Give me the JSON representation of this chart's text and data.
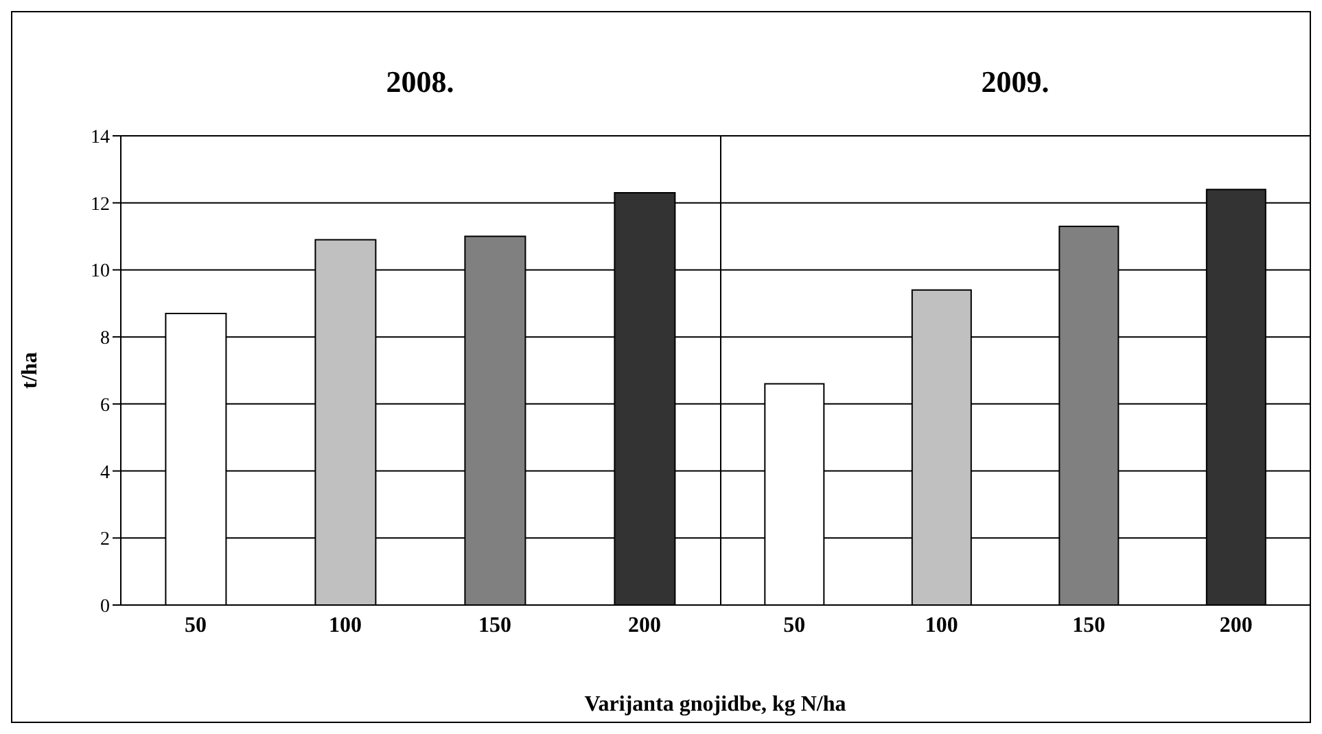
{
  "chart_data": [
    {
      "type": "bar",
      "title": "2008.",
      "ylabel": "t/ha",
      "xlabel": "Varijanta gnojidbe, kg N/ha",
      "categories": [
        "50",
        "100",
        "150",
        "200"
      ],
      "values": [
        8.7,
        10.9,
        11.0,
        12.3
      ],
      "colors": [
        "#ffffff",
        "#c0c0c0",
        "#808080",
        "#333333"
      ],
      "ylim": [
        0,
        14
      ],
      "yticks": [
        0,
        2,
        4,
        6,
        8,
        10,
        12,
        14
      ],
      "grid": "y"
    },
    {
      "type": "bar",
      "title": "2009.",
      "categories": [
        "50",
        "100",
        "150",
        "200"
      ],
      "values": [
        6.6,
        9.4,
        11.3,
        12.4
      ],
      "colors": [
        "#ffffff",
        "#c0c0c0",
        "#808080",
        "#333333"
      ],
      "ylim": [
        0,
        14
      ],
      "yticks": [
        0,
        2,
        4,
        6,
        8,
        10,
        12,
        14
      ],
      "grid": "y",
      "tick_labels": "x"
    }
  ]
}
